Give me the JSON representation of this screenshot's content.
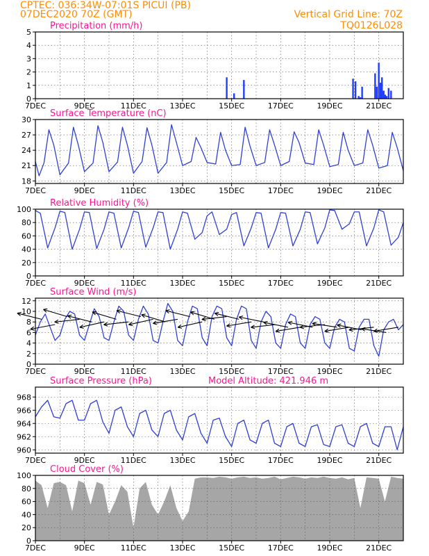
{
  "header": {
    "line1": "CPTEC:   036:34W-07:01S   PICUI (PB)",
    "line2": "07DEC2020 70Z (GMT)",
    "right1": "Vertical Grid Line: 70Z",
    "right2": "TQ0126L028"
  },
  "colors": {
    "header": "#ff8c00",
    "title": "#ff1493",
    "line": "#2f3fd6",
    "bar": "#1f3cff",
    "cloud": "#a6a6a6",
    "wind": "#000000"
  },
  "x_tick_labels": [
    "7DEC",
    "9DEC",
    "11DEC",
    "13DEC",
    "15DEC",
    "17DEC",
    "19DEC",
    "21DEC"
  ],
  "chart_data": [
    {
      "id": "precip",
      "type": "bar",
      "title": "Precipitation (mm/h)",
      "xlabel": "",
      "ylabel": "",
      "xlim": [
        0,
        15
      ],
      "ylim": [
        0,
        5
      ],
      "yticks": [
        0,
        1,
        2,
        3,
        4,
        5
      ],
      "x": [
        7.8,
        8.1,
        8.5,
        12.95,
        13.05,
        13.18,
        13.25,
        13.32,
        13.85,
        13.92,
        14.0,
        14.07,
        14.13,
        14.2,
        14.26,
        14.32,
        14.4,
        14.5
      ],
      "values": [
        1.6,
        0.4,
        1.4,
        1.5,
        1.3,
        0.2,
        0.1,
        0.9,
        1.9,
        0.9,
        2.7,
        1.2,
        1.6,
        0.6,
        0.3,
        0.2,
        0.8,
        0.6
      ]
    },
    {
      "id": "temp",
      "type": "line",
      "title": "Surface Temperature (nC)",
      "xlabel": "",
      "ylabel": "",
      "xlim": [
        0,
        15
      ],
      "ylim": [
        17.5,
        30
      ],
      "yticks": [
        18,
        21,
        24,
        27,
        30
      ],
      "x": [
        0.0,
        0.15,
        0.35,
        0.55,
        0.75,
        1.0,
        1.35,
        1.55,
        1.75,
        2.0,
        2.35,
        2.55,
        2.75,
        3.0,
        3.35,
        3.55,
        3.75,
        4.0,
        4.35,
        4.55,
        4.75,
        5.0,
        5.35,
        5.55,
        5.75,
        6.0,
        6.35,
        6.55,
        6.75,
        7.0,
        7.35,
        7.55,
        7.75,
        8.0,
        8.35,
        8.55,
        8.75,
        9.0,
        9.35,
        9.55,
        9.75,
        10.0,
        10.35,
        10.55,
        10.75,
        11.0,
        11.35,
        11.55,
        11.75,
        12.0,
        12.35,
        12.55,
        12.75,
        13.0,
        13.35,
        13.55,
        13.75,
        14.0,
        14.35,
        14.55,
        14.75,
        15.0
      ],
      "values": [
        21.8,
        19.0,
        21.5,
        28.0,
        25.0,
        19.2,
        21.5,
        28.5,
        25.0,
        19.8,
        21.5,
        28.8,
        25.5,
        19.8,
        21.7,
        28.5,
        25.0,
        19.5,
        21.8,
        28.4,
        25.0,
        19.5,
        21.6,
        29.0,
        25.5,
        21.0,
        21.8,
        26.5,
        24.5,
        21.6,
        21.3,
        27.5,
        24.0,
        21.0,
        21.2,
        28.5,
        24.8,
        21.0,
        21.6,
        28.0,
        25.0,
        21.0,
        21.8,
        27.6,
        25.5,
        21.5,
        21.2,
        28.0,
        25.0,
        20.8,
        21.2,
        27.5,
        24.0,
        21.0,
        21.5,
        28.0,
        25.0,
        20.5,
        21.0,
        27.5,
        24.5,
        20.0
      ]
    },
    {
      "id": "rh",
      "type": "line",
      "title": "Relative Humidity (%)",
      "xlabel": "",
      "ylabel": "",
      "xlim": [
        0,
        15
      ],
      "ylim": [
        0,
        100
      ],
      "yticks": [
        0,
        20,
        40,
        60,
        80,
        100
      ],
      "x": [
        0.0,
        0.2,
        0.5,
        0.8,
        1.0,
        1.2,
        1.5,
        1.8,
        2.0,
        2.2,
        2.5,
        2.8,
        3.0,
        3.2,
        3.5,
        3.8,
        4.0,
        4.2,
        4.5,
        4.8,
        5.0,
        5.2,
        5.5,
        5.8,
        6.0,
        6.2,
        6.5,
        6.8,
        7.0,
        7.2,
        7.5,
        7.8,
        8.0,
        8.2,
        8.5,
        8.8,
        9.0,
        9.2,
        9.5,
        9.8,
        10.0,
        10.2,
        10.5,
        10.8,
        11.0,
        11.2,
        11.5,
        11.8,
        12.0,
        12.2,
        12.5,
        12.8,
        13.0,
        13.2,
        13.5,
        13.8,
        14.0,
        14.2,
        14.5,
        14.8,
        15.0
      ],
      "values": [
        98,
        94,
        42,
        72,
        97,
        95,
        40,
        70,
        96,
        95,
        41,
        70,
        96,
        94,
        42,
        72,
        97,
        95,
        43,
        72,
        96,
        95,
        40,
        70,
        96,
        94,
        55,
        65,
        90,
        96,
        62,
        70,
        92,
        95,
        45,
        72,
        95,
        94,
        42,
        70,
        95,
        94,
        45,
        70,
        96,
        95,
        48,
        72,
        99,
        98,
        70,
        78,
        96,
        96,
        45,
        72,
        99,
        96,
        46,
        58,
        80
      ]
    },
    {
      "id": "wind",
      "type": "line",
      "title": "Surface Wind (m/s)",
      "xlabel": "",
      "ylabel": "",
      "xlim": [
        0,
        15
      ],
      "ylim": [
        0,
        12.5
      ],
      "yticks": [
        0,
        2,
        4,
        6,
        8,
        10,
        12
      ],
      "x": [
        0.0,
        0.2,
        0.4,
        0.6,
        0.8,
        1.0,
        1.2,
        1.4,
        1.6,
        1.8,
        2.0,
        2.2,
        2.4,
        2.6,
        2.8,
        3.0,
        3.2,
        3.4,
        3.6,
        3.8,
        4.0,
        4.2,
        4.4,
        4.6,
        4.8,
        5.0,
        5.2,
        5.4,
        5.6,
        5.8,
        6.0,
        6.2,
        6.4,
        6.6,
        6.8,
        7.0,
        7.2,
        7.4,
        7.6,
        7.8,
        8.0,
        8.2,
        8.4,
        8.6,
        8.8,
        9.0,
        9.2,
        9.4,
        9.6,
        9.8,
        10.0,
        10.2,
        10.4,
        10.6,
        10.8,
        11.0,
        11.2,
        11.4,
        11.6,
        11.8,
        12.0,
        12.2,
        12.4,
        12.6,
        12.8,
        13.0,
        13.2,
        13.4,
        13.6,
        13.8,
        14.0,
        14.2,
        14.4,
        14.6,
        14.8,
        15.0
      ],
      "values": [
        5.5,
        8.0,
        9.5,
        7.0,
        4.5,
        5.5,
        8.5,
        10.0,
        9.5,
        5.5,
        4.5,
        7.5,
        10.5,
        9.0,
        5.0,
        4.5,
        8.0,
        11.0,
        10.0,
        5.5,
        4.5,
        8.5,
        11.0,
        9.5,
        4.5,
        4.0,
        8.0,
        11.5,
        10.0,
        4.5,
        3.5,
        8.0,
        11.0,
        10.5,
        5.0,
        3.5,
        9.0,
        11.0,
        10.5,
        5.0,
        3.5,
        8.5,
        11.0,
        10.5,
        4.5,
        3.0,
        8.0,
        10.0,
        9.0,
        4.0,
        3.0,
        7.5,
        9.5,
        9.0,
        4.0,
        3.0,
        7.5,
        9.0,
        8.5,
        4.0,
        3.0,
        7.0,
        8.5,
        8.0,
        3.0,
        2.5,
        7.0,
        8.5,
        8.5,
        3.5,
        1.5,
        6.5,
        8.0,
        8.5,
        6.5,
        7.5
      ],
      "wind_vectors": {
        "x": [
          0.25,
          0.8,
          1.3,
          1.8,
          2.3,
          2.8,
          3.3,
          3.8,
          4.3,
          4.8,
          5.3,
          5.8,
          6.3,
          6.8,
          7.3,
          7.8,
          8.3,
          8.8,
          9.3,
          9.8,
          10.3,
          10.8,
          11.3,
          11.8,
          12.3,
          12.8,
          13.3,
          13.8,
          14.3,
          14.8
        ],
        "speed": [
          8.5,
          7.5,
          9.0,
          8.5,
          8.0,
          8.0,
          8.5,
          8.0,
          9.0,
          8.5,
          8.0,
          8.5,
          9.0,
          8.0,
          8.5,
          9.0,
          8.5,
          8.0,
          8.0,
          7.5,
          7.0,
          7.0,
          7.0,
          7.5,
          7.0,
          7.0,
          6.5,
          7.0,
          6.0,
          7.0
        ],
        "u": [
          -1.0,
          -0.8,
          -1.0,
          -0.9,
          -1.0,
          -0.9,
          -1.0,
          -0.9,
          -1.0,
          -0.9,
          -1.0,
          -0.9,
          -1.0,
          -0.9,
          -1.0,
          -0.9,
          -1.0,
          -0.9,
          -1.0,
          -0.9,
          -1.0,
          -0.9,
          -1.0,
          -0.9,
          -1.0,
          -0.9,
          -1.0,
          -0.9,
          -1.0,
          -0.9
        ],
        "v": [
          0.25,
          -0.15,
          0.3,
          -0.1,
          0.25,
          -0.2,
          0.3,
          -0.1,
          0.25,
          -0.2,
          0.3,
          -0.15,
          0.25,
          -0.2,
          0.3,
          -0.1,
          0.25,
          -0.15,
          0.2,
          -0.1,
          0.2,
          -0.15,
          0.2,
          -0.1,
          0.15,
          -0.15,
          0.2,
          -0.1,
          0.15,
          -0.15
        ]
      }
    },
    {
      "id": "pressure",
      "type": "line",
      "title": "Surface Pressure (hPa)",
      "subtitle": "Model Altitude: 421.946 m",
      "xlabel": "",
      "ylabel": "",
      "xlim": [
        0,
        15
      ],
      "ylim": [
        959.5,
        969.5
      ],
      "yticks": [
        960,
        962,
        964,
        966,
        968
      ],
      "x": [
        0.0,
        0.25,
        0.5,
        0.75,
        1.0,
        1.25,
        1.5,
        1.75,
        2.0,
        2.25,
        2.5,
        2.75,
        3.0,
        3.25,
        3.5,
        3.75,
        4.0,
        4.25,
        4.5,
        4.75,
        5.0,
        5.25,
        5.5,
        5.75,
        6.0,
        6.25,
        6.5,
        6.75,
        7.0,
        7.25,
        7.5,
        7.75,
        8.0,
        8.25,
        8.5,
        8.75,
        9.0,
        9.25,
        9.5,
        9.75,
        10.0,
        10.25,
        10.5,
        10.75,
        11.0,
        11.25,
        11.5,
        11.75,
        12.0,
        12.25,
        12.5,
        12.75,
        13.0,
        13.25,
        13.5,
        13.75,
        14.0,
        14.25,
        14.5,
        14.75,
        15.0
      ],
      "values": [
        965.0,
        966.5,
        967.5,
        965.0,
        964.8,
        967.0,
        967.5,
        964.5,
        964.5,
        967.0,
        967.5,
        964.2,
        962.5,
        966.0,
        966.5,
        963.5,
        962.0,
        965.5,
        966.0,
        963.0,
        962.0,
        965.5,
        966.0,
        963.0,
        961.5,
        965.0,
        965.5,
        962.5,
        961.0,
        964.5,
        964.8,
        962.0,
        960.5,
        964.0,
        964.5,
        961.5,
        961.0,
        964.0,
        964.5,
        961.0,
        960.5,
        963.5,
        964.0,
        961.0,
        960.5,
        963.5,
        963.8,
        960.8,
        960.5,
        963.5,
        963.8,
        961.0,
        960.5,
        963.5,
        964.0,
        961.0,
        960.5,
        963.5,
        963.5,
        960.0,
        963.5
      ]
    },
    {
      "id": "cloud",
      "type": "area",
      "title": "Cloud Cover (%)",
      "xlabel": "",
      "ylabel": "",
      "xlim": [
        0,
        15
      ],
      "ylim": [
        0,
        100
      ],
      "yticks": [
        0,
        20,
        40,
        60,
        80,
        100
      ],
      "x": [
        0.0,
        0.25,
        0.5,
        0.75,
        1.0,
        1.25,
        1.5,
        1.75,
        2.0,
        2.25,
        2.5,
        2.75,
        3.0,
        3.25,
        3.5,
        3.75,
        4.0,
        4.25,
        4.5,
        4.75,
        5.0,
        5.25,
        5.5,
        5.75,
        6.0,
        6.25,
        6.5,
        6.75,
        7.0,
        7.25,
        7.5,
        7.75,
        8.0,
        8.25,
        8.5,
        8.75,
        9.0,
        9.25,
        9.5,
        9.75,
        10.0,
        10.25,
        10.5,
        10.75,
        11.0,
        11.25,
        11.5,
        11.75,
        12.0,
        12.25,
        12.5,
        12.75,
        13.0,
        13.25,
        13.5,
        13.75,
        14.0,
        14.25,
        14.5,
        14.75,
        15.0
      ],
      "values": [
        92,
        85,
        50,
        88,
        90,
        85,
        45,
        92,
        88,
        55,
        90,
        86,
        40,
        60,
        85,
        75,
        20,
        80,
        90,
        55,
        40,
        60,
        85,
        50,
        30,
        45,
        95,
        97,
        97,
        96,
        98,
        97,
        95,
        97,
        98,
        96,
        97,
        95,
        96,
        98,
        94,
        96,
        98,
        97,
        95,
        97,
        96,
        98,
        96,
        95,
        97,
        94,
        96,
        50,
        97,
        96,
        95,
        60,
        98,
        96,
        95
      ]
    }
  ]
}
